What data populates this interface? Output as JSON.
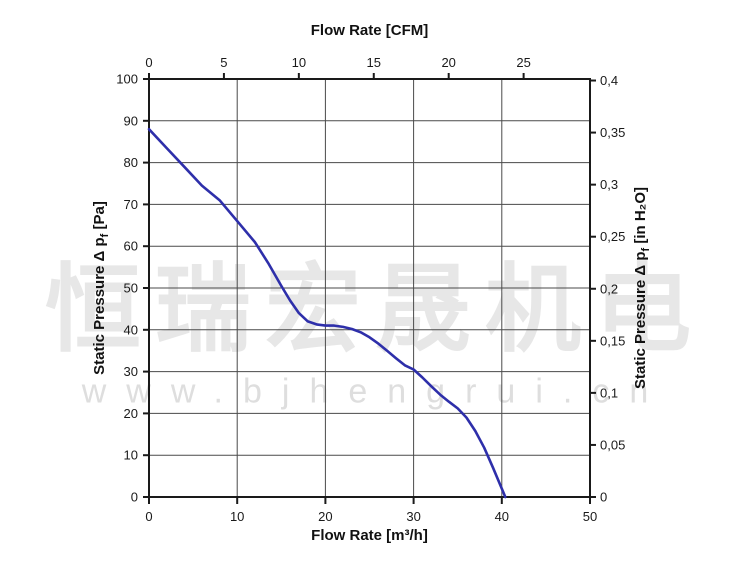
{
  "watermark": {
    "line1": "恒瑞宏晟机电",
    "line2": "www.bjhengrui.cn",
    "color_line1": "#e7e7e7",
    "color_line2": "#dedede"
  },
  "chart_data": {
    "type": "line",
    "title": "",
    "legend": "none",
    "grid": {
      "on": true,
      "x_values": [
        10,
        20,
        30,
        40
      ],
      "y_values": [
        10,
        20,
        30,
        40,
        50,
        60,
        70,
        80,
        90
      ]
    },
    "axes": {
      "bottom": {
        "label": "Flow Rate [m³/h]",
        "range": [
          0,
          50
        ],
        "ticks": [
          {
            "v": 0,
            "t": "0"
          },
          {
            "v": 10,
            "t": "10"
          },
          {
            "v": 20,
            "t": "20"
          },
          {
            "v": 30,
            "t": "30"
          },
          {
            "v": 40,
            "t": "40"
          },
          {
            "v": 50,
            "t": "50"
          }
        ]
      },
      "top": {
        "label": "Flow Rate [CFM]",
        "range": [
          0,
          29.43
        ],
        "ticks": [
          {
            "v": 0,
            "t": "0"
          },
          {
            "v": 5,
            "t": "5"
          },
          {
            "v": 10,
            "t": "10"
          },
          {
            "v": 15,
            "t": "15"
          },
          {
            "v": 20,
            "t": "20"
          },
          {
            "v": 25,
            "t": "25"
          }
        ]
      },
      "left": {
        "label_pre": "Static Pressure Δ p",
        "label_sub": "f",
        "label_post": " [Pa]",
        "range": [
          0,
          100
        ],
        "ticks": [
          {
            "v": 0,
            "t": "0"
          },
          {
            "v": 10,
            "t": "10"
          },
          {
            "v": 20,
            "t": "20"
          },
          {
            "v": 30,
            "t": "30"
          },
          {
            "v": 40,
            "t": "40"
          },
          {
            "v": 50,
            "t": "50"
          },
          {
            "v": 60,
            "t": "60"
          },
          {
            "v": 70,
            "t": "70"
          },
          {
            "v": 80,
            "t": "80"
          },
          {
            "v": 90,
            "t": "90"
          },
          {
            "v": 100,
            "t": "100"
          }
        ]
      },
      "right": {
        "label_pre": "Static Pressure Δ p",
        "label_sub": "f",
        "label_post": " [in H₂O]",
        "range": [
          0,
          0.40146
        ],
        "ticks": [
          {
            "v": 0,
            "t": "0"
          },
          {
            "v": 0.05,
            "t": "0,05"
          },
          {
            "v": 0.1,
            "t": "0,1"
          },
          {
            "v": 0.15,
            "t": "0,15"
          },
          {
            "v": 0.2,
            "t": "0,2"
          },
          {
            "v": 0.25,
            "t": "0,25"
          },
          {
            "v": 0.3,
            "t": "0,3"
          },
          {
            "v": 0.35,
            "t": "0,35"
          },
          {
            "v": 0.4,
            "t": "0,4"
          }
        ]
      }
    },
    "series": [
      {
        "name": "static-pressure-vs-flow",
        "color": "#2e2faa",
        "points": [
          [
            0,
            88
          ],
          [
            2,
            83.5
          ],
          [
            4,
            79
          ],
          [
            6,
            74.5
          ],
          [
            8,
            71
          ],
          [
            10,
            66
          ],
          [
            12,
            61
          ],
          [
            13.5,
            56
          ],
          [
            15,
            50.5
          ],
          [
            16,
            47
          ],
          [
            17,
            44
          ],
          [
            18,
            42
          ],
          [
            19,
            41.3
          ],
          [
            20,
            41
          ],
          [
            21,
            41
          ],
          [
            22,
            40.7
          ],
          [
            23,
            40.2
          ],
          [
            24,
            39.4
          ],
          [
            25,
            38.2
          ],
          [
            26,
            36.7
          ],
          [
            27,
            35
          ],
          [
            28,
            33.2
          ],
          [
            29,
            31.5
          ],
          [
            30,
            30.5
          ],
          [
            31,
            28.6
          ],
          [
            32,
            26.5
          ],
          [
            33,
            24.5
          ],
          [
            34,
            22.8
          ],
          [
            35,
            21.2
          ],
          [
            36,
            19
          ],
          [
            37,
            15.8
          ],
          [
            38,
            11.8
          ],
          [
            39,
            7
          ],
          [
            40,
            2
          ],
          [
            40.4,
            0
          ]
        ]
      }
    ],
    "colors": {
      "grid": "#4a4a4a",
      "frame": "#1a1a1a",
      "curve": "#2e2faa",
      "tick_text": "#1a1a1a"
    }
  }
}
